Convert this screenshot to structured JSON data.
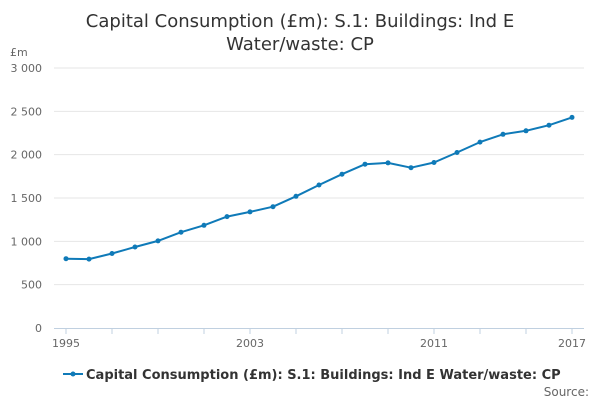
{
  "chart_data": {
    "type": "line",
    "title_lines": [
      "Capital Consumption (£m): S.1: Buildings: Ind E",
      "Water/waste: CP"
    ],
    "ylabel": "£m",
    "ylim": [
      0,
      3000
    ],
    "yticks": [
      0,
      500,
      1000,
      1500,
      2000,
      2500,
      3000
    ],
    "ytick_labels": [
      "0",
      "500",
      "1 000",
      "1 500",
      "2 000",
      "2 500",
      "3 000"
    ],
    "xlim": [
      1995,
      2017
    ],
    "xtick_labels": [
      "1995",
      "2003",
      "2011",
      "2017"
    ],
    "x": [
      1995,
      1996,
      1997,
      1998,
      1999,
      2000,
      2001,
      2002,
      2003,
      2004,
      2005,
      2006,
      2007,
      2008,
      2009,
      2010,
      2011,
      2012,
      2013,
      2014,
      2015,
      2016,
      2017
    ],
    "series": [
      {
        "name": "Capital Consumption (£m): S.1: Buildings: Ind E Water/waste: CP",
        "color": "#0f7ab8",
        "values": [
          800,
          795,
          860,
          935,
          1005,
          1105,
          1185,
          1285,
          1340,
          1400,
          1520,
          1650,
          1775,
          1890,
          1905,
          1850,
          1910,
          2025,
          2145,
          2235,
          2275,
          2340,
          2430
        ]
      }
    ],
    "grid": true,
    "legend": "bottom",
    "source_label": "Source:"
  }
}
